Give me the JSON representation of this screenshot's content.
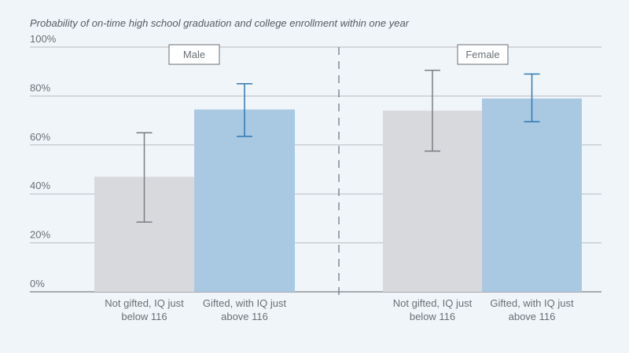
{
  "chart_data": {
    "type": "bar",
    "title": "Probability of on-time high school graduation and college enrollment within one year",
    "ylim": [
      0,
      100
    ],
    "y_ticks": [
      "0%",
      "20%",
      "40%",
      "60%",
      "80%",
      "100%"
    ],
    "grid": true,
    "panels": [
      {
        "label": "Male",
        "categories": [
          "Not gifted, IQ just below 116",
          "Gifted, with IQ just above 116"
        ],
        "values": [
          47,
          74.5
        ],
        "error_low": [
          28.5,
          63.5
        ],
        "error_high": [
          65,
          85
        ]
      },
      {
        "label": "Female",
        "categories": [
          "Not gifted, IQ just below 116",
          "Gifted, with IQ just above 116"
        ],
        "values": [
          74,
          79
        ],
        "error_low": [
          57.5,
          69.5
        ],
        "error_high": [
          90.5,
          89
        ]
      }
    ],
    "category_labels": [
      [
        "Not gifted, IQ just",
        "below 116"
      ],
      [
        "Gifted, with IQ just",
        "above 116"
      ]
    ],
    "colors": {
      "not_gifted": "#d8d9dd",
      "gifted": "#a9c9e3",
      "error_not_gifted": "#7a7d82",
      "error_gifted": "#2f78b0",
      "grid": "#b9bcc0"
    }
  }
}
